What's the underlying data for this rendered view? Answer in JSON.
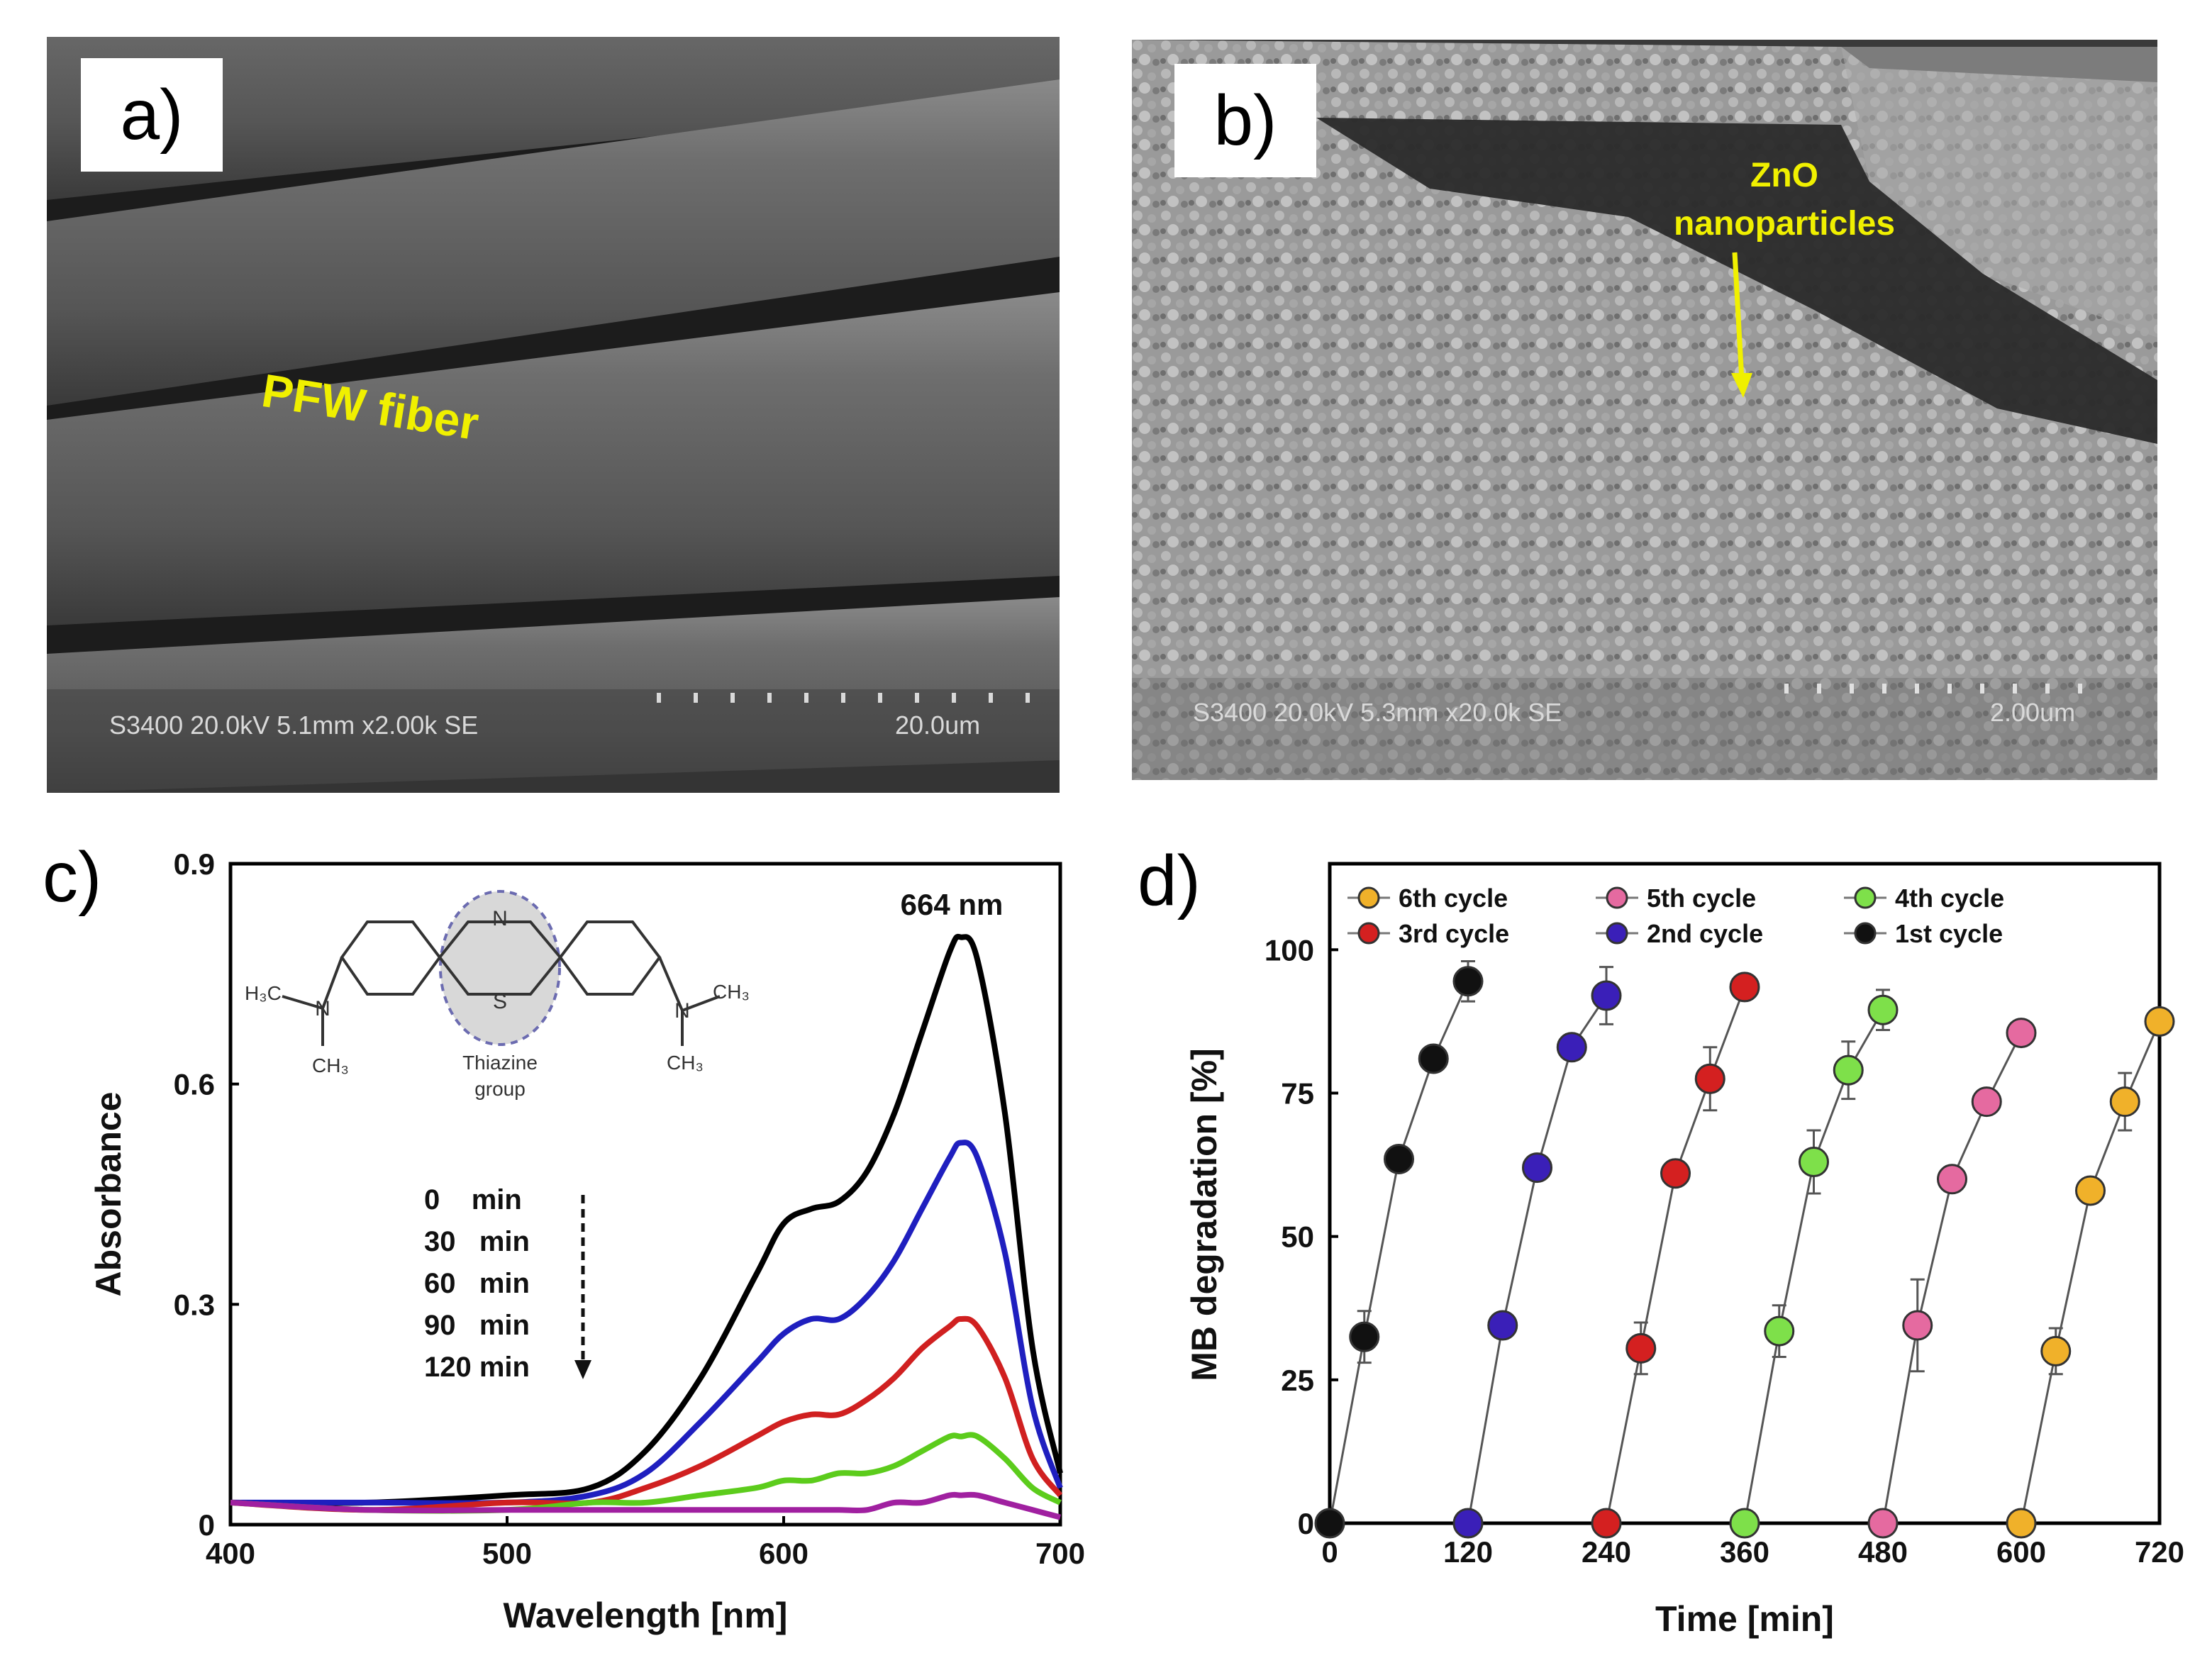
{
  "panels": {
    "a": {
      "label": "a)",
      "annotation": "PFW fiber",
      "sem_info": "S3400 20.0kV 5.1mm x2.00k SE",
      "scale_bar": "20.0um",
      "annotation_color": "#f0f000"
    },
    "b": {
      "label": "b)",
      "annotation_line1": "ZnO",
      "annotation_line2": "nanoparticles",
      "sem_info": "S3400 20.0kV 5.3mm x20.0k SE",
      "scale_bar": "2.00um",
      "annotation_color": "#f0f000"
    },
    "c": {
      "label": "c)",
      "peak_label": "664 nm",
      "structure_label_1": "Thiazine",
      "structure_label_2": "group",
      "time_legend": [
        "0    min",
        "30   min",
        "60   min",
        "90   min",
        "120 min"
      ],
      "atoms": {
        "n_top": "N",
        "s": "S",
        "n_left": "N",
        "n_right": "N",
        "h3c": "H₃C",
        "ch3_left": "CH₃",
        "ch3_right_top": "CH₃",
        "ch3_right_bottom": "CH₃"
      }
    },
    "d": {
      "label": "d)"
    }
  },
  "chart_data": [
    {
      "type": "line",
      "panel": "c",
      "xlabel": "Wavelength [nm]",
      "ylabel": "Absorbance",
      "xlim": [
        400,
        700
      ],
      "ylim": [
        0,
        0.9
      ],
      "xticks": [
        400,
        500,
        600,
        700
      ],
      "yticks": [
        0,
        0.3,
        0.6,
        0.9
      ],
      "ytick_labels": [
        "0",
        "0.3",
        "0.6",
        "0.9"
      ],
      "x": [
        400,
        450,
        500,
        530,
        550,
        570,
        590,
        600,
        610,
        620,
        630,
        640,
        650,
        660,
        664,
        670,
        680,
        690,
        700
      ],
      "series": [
        {
          "time": "0 min",
          "color": "#000000",
          "values": [
            0.03,
            0.03,
            0.04,
            0.05,
            0.1,
            0.2,
            0.34,
            0.41,
            0.43,
            0.44,
            0.48,
            0.56,
            0.67,
            0.78,
            0.8,
            0.77,
            0.56,
            0.24,
            0.07
          ]
        },
        {
          "time": "30 min",
          "color": "#1f1fbf",
          "values": [
            0.03,
            0.03,
            0.03,
            0.04,
            0.07,
            0.14,
            0.22,
            0.26,
            0.28,
            0.28,
            0.31,
            0.36,
            0.43,
            0.5,
            0.52,
            0.5,
            0.37,
            0.16,
            0.05
          ]
        },
        {
          "time": "60 min",
          "color": "#d02020",
          "values": [
            0.03,
            0.02,
            0.03,
            0.03,
            0.05,
            0.08,
            0.12,
            0.14,
            0.15,
            0.15,
            0.17,
            0.2,
            0.24,
            0.27,
            0.28,
            0.27,
            0.2,
            0.09,
            0.04
          ]
        },
        {
          "time": "90 min",
          "color": "#5ccc1c",
          "values": [
            0.03,
            0.02,
            0.02,
            0.03,
            0.03,
            0.04,
            0.05,
            0.06,
            0.06,
            0.07,
            0.07,
            0.08,
            0.1,
            0.12,
            0.12,
            0.12,
            0.09,
            0.05,
            0.03
          ]
        },
        {
          "time": "120 min",
          "color": "#a020a0",
          "values": [
            0.03,
            0.02,
            0.02,
            0.02,
            0.02,
            0.02,
            0.02,
            0.02,
            0.02,
            0.02,
            0.02,
            0.03,
            0.03,
            0.04,
            0.04,
            0.04,
            0.03,
            0.02,
            0.01
          ]
        }
      ]
    },
    {
      "type": "scatter",
      "panel": "d",
      "xlabel": "Time [min]",
      "ylabel": "MB degradation [%]",
      "xlim": [
        0,
        720
      ],
      "ylim": [
        0,
        115
      ],
      "xticks": [
        0,
        120,
        240,
        360,
        480,
        600,
        720
      ],
      "yticks": [
        0,
        25,
        50,
        75,
        100
      ],
      "legend_position": "top",
      "legend_order": [
        "6th cycle",
        "5th cycle",
        "4th cycle",
        "3rd cycle",
        "2nd cycle",
        "1st cycle"
      ],
      "series": [
        {
          "name": "1st cycle",
          "color": "#111111",
          "x": [
            0,
            30,
            60,
            90,
            120
          ],
          "values": [
            0,
            32.5,
            63.5,
            81,
            94.5
          ],
          "err": [
            0,
            4.5,
            2,
            2,
            3.5
          ]
        },
        {
          "name": "2nd cycle",
          "color": "#3a1fb8",
          "x": [
            120,
            150,
            180,
            210,
            240
          ],
          "values": [
            0,
            34.5,
            62,
            83,
            92
          ],
          "err": [
            0,
            1.5,
            1.5,
            1.5,
            5
          ]
        },
        {
          "name": "3rd cycle",
          "color": "#d42020",
          "x": [
            240,
            270,
            300,
            330,
            360
          ],
          "values": [
            0,
            30.5,
            61,
            77.5,
            93.5
          ],
          "err": [
            0,
            4.5,
            2,
            5.5,
            1.5
          ]
        },
        {
          "name": "4th cycle",
          "color": "#7ee04a",
          "x": [
            360,
            390,
            420,
            450,
            480
          ],
          "values": [
            0,
            33.5,
            63,
            79,
            89.5
          ],
          "err": [
            0,
            4.5,
            5.5,
            5,
            3.5
          ]
        },
        {
          "name": "5th cycle",
          "color": "#e56aa0",
          "x": [
            480,
            510,
            540,
            570,
            600
          ],
          "values": [
            0,
            34.5,
            60,
            73.5,
            85.5
          ],
          "err": [
            0,
            8,
            2,
            2,
            1.5
          ]
        },
        {
          "name": "6th cycle",
          "color": "#f0b12a",
          "x": [
            600,
            630,
            660,
            690,
            720
          ],
          "values": [
            0,
            30,
            58,
            73.5,
            87.5
          ],
          "err": [
            0,
            4,
            2,
            5,
            1.5
          ]
        }
      ]
    }
  ]
}
